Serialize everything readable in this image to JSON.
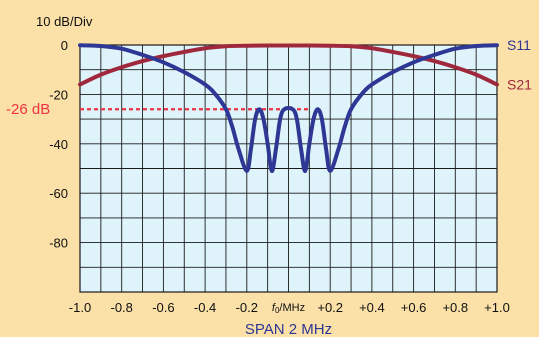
{
  "chart_data": {
    "type": "line",
    "unit_label": "10 dB/Div",
    "xlabel": "SPAN 2 MHz",
    "center_label_italic": "f",
    "center_label_sub": "0",
    "center_label_rest": "/MHz",
    "x_ticks": [
      "-1.0",
      "-0.8",
      "-0.6",
      "-0.4",
      "-0.2",
      "",
      "+0.2",
      "+0.4",
      "+0.6",
      "+0.8",
      "+1.0"
    ],
    "x_tick_values": [
      -1.0,
      -0.8,
      -0.6,
      -0.4,
      -0.2,
      0.0,
      0.2,
      0.4,
      0.6,
      0.8,
      1.0
    ],
    "y_ticks": [
      "0",
      "-20",
      "-40",
      "-60",
      "-80"
    ],
    "y_tick_values": [
      0,
      -20,
      -40,
      -60,
      -80
    ],
    "xlim": [
      -1.0,
      1.0
    ],
    "ylim": [
      -100,
      0
    ],
    "grid": true,
    "reference_line": {
      "label": "-26 dB",
      "value": -26,
      "color": "#ee3344"
    },
    "series": [
      {
        "name": "S21",
        "color": "#a0283c",
        "points": [
          [
            -1.0,
            -16
          ],
          [
            -0.9,
            -12
          ],
          [
            -0.8,
            -9
          ],
          [
            -0.7,
            -6.5
          ],
          [
            -0.6,
            -4.5
          ],
          [
            -0.5,
            -2.8
          ],
          [
            -0.4,
            -1.3
          ],
          [
            -0.3,
            -0.5
          ],
          [
            -0.2,
            -0.3
          ],
          [
            -0.1,
            -0.2
          ],
          [
            0.0,
            -0.2
          ],
          [
            0.1,
            -0.2
          ],
          [
            0.2,
            -0.3
          ],
          [
            0.3,
            -0.5
          ],
          [
            0.4,
            -1.3
          ],
          [
            0.5,
            -2.8
          ],
          [
            0.6,
            -4.5
          ],
          [
            0.7,
            -6.5
          ],
          [
            0.8,
            -9
          ],
          [
            0.9,
            -12
          ],
          [
            1.0,
            -16
          ]
        ]
      },
      {
        "name": "S11",
        "color": "#2e3794",
        "points": [
          [
            -1.0,
            -0.1
          ],
          [
            -0.9,
            -0.4
          ],
          [
            -0.8,
            -1.5
          ],
          [
            -0.7,
            -4
          ],
          [
            -0.6,
            -7
          ],
          [
            -0.5,
            -11
          ],
          [
            -0.4,
            -16
          ],
          [
            -0.35,
            -20
          ],
          [
            -0.3,
            -26
          ],
          [
            -0.27,
            -33
          ],
          [
            -0.24,
            -42
          ],
          [
            -0.2,
            -51
          ],
          [
            -0.18,
            -42
          ],
          [
            -0.16,
            -30
          ],
          [
            -0.14,
            -26
          ],
          [
            -0.12,
            -30
          ],
          [
            -0.1,
            -40
          ],
          [
            -0.08,
            -51
          ],
          [
            -0.06,
            -42
          ],
          [
            -0.04,
            -30
          ],
          [
            -0.02,
            -26
          ],
          [
            0.02,
            -26
          ],
          [
            0.04,
            -30
          ],
          [
            0.06,
            -42
          ],
          [
            0.08,
            -51
          ],
          [
            0.1,
            -40
          ],
          [
            0.12,
            -30
          ],
          [
            0.14,
            -26
          ],
          [
            0.16,
            -30
          ],
          [
            0.18,
            -42
          ],
          [
            0.2,
            -51
          ],
          [
            0.24,
            -42
          ],
          [
            0.27,
            -33
          ],
          [
            0.3,
            -26
          ],
          [
            0.35,
            -20
          ],
          [
            0.4,
            -16
          ],
          [
            0.5,
            -11
          ],
          [
            0.6,
            -7
          ],
          [
            0.7,
            -4
          ],
          [
            0.8,
            -1.5
          ],
          [
            0.9,
            -0.4
          ],
          [
            1.0,
            -0.1
          ]
        ]
      }
    ]
  },
  "colors": {
    "background": "#fbe0a8",
    "plot_bg": "#dff3fb",
    "grid": "#1a1a1a",
    "tick_text": "#111111",
    "xlabel_text": "#2e3794"
  }
}
